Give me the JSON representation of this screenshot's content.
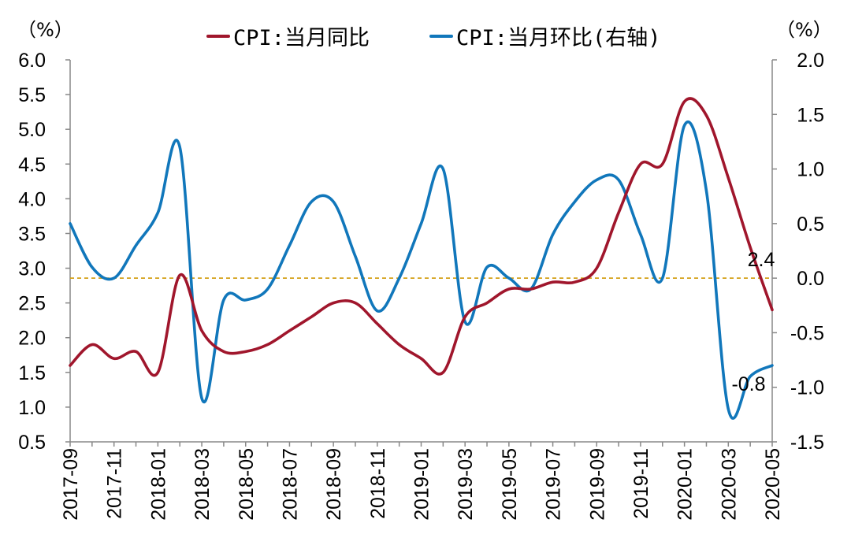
{
  "units": {
    "left": "（%）",
    "right": "（%）"
  },
  "legend": [
    {
      "label": "CPI:当月同比",
      "color": "#A0162C"
    },
    {
      "label": "CPI:当月环比(右轴)",
      "color": "#1177BB"
    }
  ],
  "colors": {
    "reference_line": "#D4A017",
    "axis": "#888888"
  },
  "chart_data": {
    "type": "line",
    "x": [
      "2017-09",
      "2017-10",
      "2017-11",
      "2017-12",
      "2018-01",
      "2018-02",
      "2018-03",
      "2018-04",
      "2018-05",
      "2018-06",
      "2018-07",
      "2018-08",
      "2018-09",
      "2018-10",
      "2018-11",
      "2018-12",
      "2019-01",
      "2019-02",
      "2019-03",
      "2019-04",
      "2019-05",
      "2019-06",
      "2019-07",
      "2019-08",
      "2019-09",
      "2019-10",
      "2019-11",
      "2019-12",
      "2020-01",
      "2020-02",
      "2020-03",
      "2020-04",
      "2020-05"
    ],
    "x_tick_labels": [
      "2017-09",
      "2017-11",
      "2018-01",
      "2018-03",
      "2018-05",
      "2018-07",
      "2018-09",
      "2018-11",
      "2019-01",
      "2019-03",
      "2019-05",
      "2019-07",
      "2019-09",
      "2019-11",
      "2020-01",
      "2020-03",
      "2020-05"
    ],
    "series": [
      {
        "name": "CPI:当月同比",
        "axis": "left",
        "values": [
          1.6,
          1.9,
          1.7,
          1.8,
          1.5,
          2.9,
          2.1,
          1.8,
          1.8,
          1.9,
          2.1,
          2.3,
          2.5,
          2.5,
          2.2,
          1.9,
          1.7,
          1.5,
          2.3,
          2.5,
          2.7,
          2.7,
          2.8,
          2.8,
          3.0,
          3.8,
          4.5,
          4.5,
          5.4,
          5.2,
          4.3,
          3.3,
          2.4
        ]
      },
      {
        "name": "CPI:当月环比(右轴)",
        "axis": "right",
        "values": [
          0.5,
          0.1,
          0.0,
          0.3,
          0.6,
          1.2,
          -1.1,
          -0.2,
          -0.2,
          -0.1,
          0.3,
          0.7,
          0.7,
          0.2,
          -0.3,
          0.0,
          0.5,
          1.0,
          -0.4,
          0.1,
          0.0,
          -0.1,
          0.4,
          0.7,
          0.9,
          0.9,
          0.4,
          0.0,
          1.4,
          0.8,
          -1.2,
          -0.9,
          -0.8
        ]
      }
    ],
    "y_left": {
      "ylim": [
        0.5,
        6.0
      ],
      "tick_labels": [
        "0.5",
        "1.0",
        "1.5",
        "2.0",
        "2.5",
        "3.0",
        "3.5",
        "4.0",
        "4.5",
        "5.0",
        "5.5",
        "6.0"
      ]
    },
    "y_right": {
      "ylim": [
        -1.5,
        2.0
      ],
      "tick_labels": [
        "-1.5",
        "-1.0",
        "-0.5",
        "0.0",
        "0.5",
        "1.0",
        "1.5",
        "2.0"
      ]
    },
    "reference_line": {
      "axis": "right",
      "value": 0.0,
      "style": "dashed"
    },
    "annotations": [
      {
        "text": "2.4",
        "series": 0,
        "point": "last"
      },
      {
        "text": "-0.8",
        "series": 1,
        "point": "last"
      }
    ],
    "grid": false,
    "legend_position": "top"
  }
}
